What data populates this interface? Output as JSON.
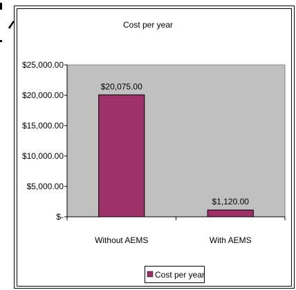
{
  "chart_data": {
    "type": "bar",
    "title": "Cost per year",
    "categories": [
      "Without AEMS",
      "With AEMS"
    ],
    "series": [
      {
        "name": "Cost per year",
        "values": [
          20075,
          1120
        ],
        "color": "#9e3069"
      }
    ],
    "data_labels": [
      "$20,075.00",
      "$1,120.00"
    ],
    "y_tick_labels": [
      "$25,000.00",
      "$20,000.00",
      "$15,000.00",
      "$10,000.00",
      "$5,000.00",
      "$-"
    ],
    "y_ticks": [
      25000,
      20000,
      15000,
      10000,
      5000,
      0
    ],
    "ylim": [
      0,
      25000
    ],
    "xlabel": "",
    "ylabel": "",
    "grid": false,
    "legend_position": "bottom",
    "plot_background": "#c0c0c0"
  }
}
